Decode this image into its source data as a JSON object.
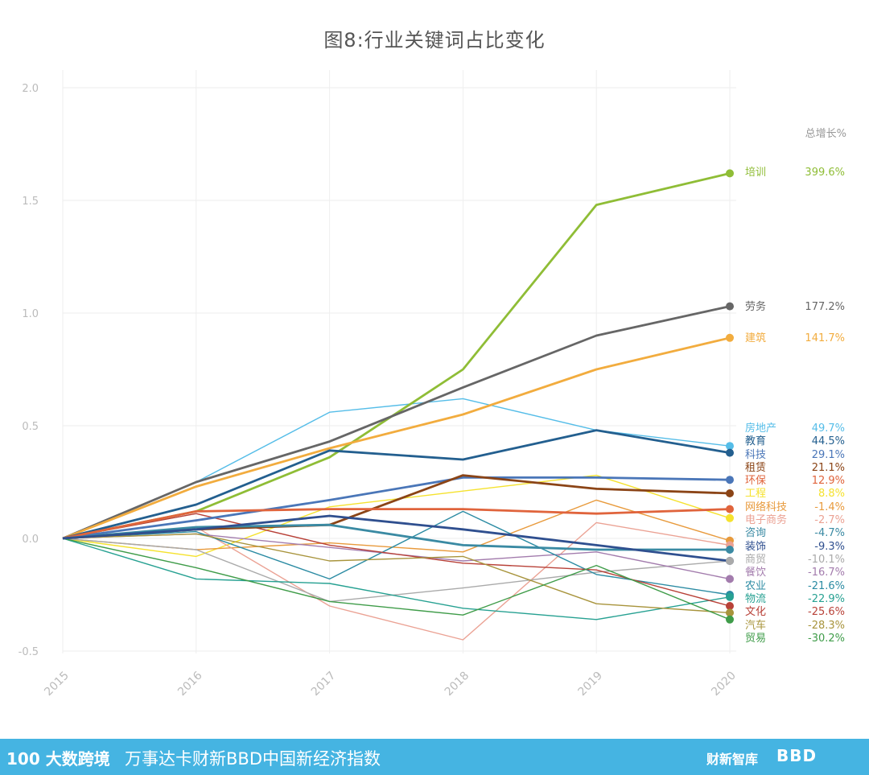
{
  "chart_data": {
    "type": "line",
    "title": "图8:行业关键词占比变化",
    "x": [
      "2015",
      "2016",
      "2017",
      "2018",
      "2019",
      "2020"
    ],
    "ylim": [
      -0.5,
      2.0
    ],
    "yticks": [
      "2.0",
      "1.5",
      "1.0",
      "0.5",
      "0.0",
      "-0.5"
    ],
    "ytick_values": [
      2.0,
      1.5,
      1.0,
      0.5,
      0.0,
      -0.5
    ],
    "grid": true,
    "legend_header": "总增长%",
    "series": [
      {
        "name": "培训",
        "growth": "399.6%",
        "color": "#8fbd36",
        "highlight": true,
        "values": [
          0,
          0.12,
          0.36,
          0.75,
          1.48,
          1.62
        ]
      },
      {
        "name": "劳务",
        "growth": "177.2%",
        "color": "#666666",
        "highlight": true,
        "values": [
          0,
          0.25,
          0.43,
          0.67,
          0.9,
          1.03
        ]
      },
      {
        "name": "建筑",
        "growth": "141.7%",
        "color": "#f2ac3e",
        "highlight": true,
        "values": [
          0,
          0.23,
          0.4,
          0.55,
          0.75,
          0.89
        ]
      },
      {
        "name": "房地产",
        "growth": "49.7%",
        "color": "#55bde8",
        "highlight": false,
        "values": [
          0,
          0.25,
          0.56,
          0.62,
          0.48,
          0.41
        ]
      },
      {
        "name": "教育",
        "growth": "44.5%",
        "color": "#235f8f",
        "highlight": true,
        "values": [
          0,
          0.15,
          0.39,
          0.35,
          0.48,
          0.38
        ]
      },
      {
        "name": "科技",
        "growth": "29.1%",
        "color": "#4a76b8",
        "highlight": true,
        "values": [
          0,
          0.08,
          0.17,
          0.27,
          0.27,
          0.26
        ]
      },
      {
        "name": "租赁",
        "growth": "21.1%",
        "color": "#8b4416",
        "highlight": true,
        "values": [
          0,
          0.04,
          0.06,
          0.28,
          0.22,
          0.2
        ]
      },
      {
        "name": "环保",
        "growth": "12.9%",
        "color": "#e0643c",
        "highlight": true,
        "values": [
          0,
          0.12,
          0.13,
          0.13,
          0.11,
          0.13
        ]
      },
      {
        "name": "工程",
        "growth": "8.8%",
        "color": "#f5e22e",
        "highlight": false,
        "values": [
          0,
          -0.08,
          0.14,
          0.21,
          0.28,
          0.09
        ]
      },
      {
        "name": "网络科技",
        "growth": "-1.4%",
        "color": "#e89a3c",
        "highlight": false,
        "values": [
          0,
          -0.05,
          -0.02,
          -0.06,
          0.17,
          -0.01
        ]
      },
      {
        "name": "电子商务",
        "growth": "-2.7%",
        "color": "#eba294",
        "highlight": false,
        "values": [
          0,
          0.05,
          -0.3,
          -0.45,
          0.07,
          -0.03
        ]
      },
      {
        "name": "咨询",
        "growth": "-4.7%",
        "color": "#3a8aa3",
        "highlight": true,
        "values": [
          0,
          0.05,
          0.06,
          -0.03,
          -0.05,
          -0.05
        ]
      },
      {
        "name": "装饰",
        "growth": "-9.3%",
        "color": "#2f4f8f",
        "highlight": true,
        "values": [
          0,
          0.04,
          0.1,
          0.04,
          -0.03,
          -0.1
        ]
      },
      {
        "name": "商贸",
        "growth": "-10.1%",
        "color": "#aaaaaa",
        "highlight": false,
        "values": [
          0,
          -0.05,
          -0.28,
          -0.22,
          -0.15,
          -0.1
        ]
      },
      {
        "name": "餐饮",
        "growth": "-16.7%",
        "color": "#a37cad",
        "highlight": false,
        "values": [
          0,
          0.02,
          -0.04,
          -0.1,
          -0.06,
          -0.18
        ]
      },
      {
        "name": "农业",
        "growth": "-21.6%",
        "color": "#2b8ba3",
        "highlight": false,
        "values": [
          0,
          0.03,
          -0.18,
          0.12,
          -0.16,
          -0.25
        ]
      },
      {
        "name": "物流",
        "growth": "-22.9%",
        "color": "#27a192",
        "highlight": false,
        "values": [
          0,
          -0.18,
          -0.2,
          -0.31,
          -0.36,
          -0.26
        ]
      },
      {
        "name": "文化",
        "growth": "-25.6%",
        "color": "#b84138",
        "highlight": false,
        "values": [
          0,
          0.11,
          -0.03,
          -0.11,
          -0.14,
          -0.3
        ]
      },
      {
        "name": "汽车",
        "growth": "-28.3%",
        "color": "#a8943c",
        "highlight": false,
        "values": [
          0,
          0.02,
          -0.1,
          -0.08,
          -0.29,
          -0.33
        ]
      },
      {
        "name": "贸易",
        "growth": "-30.2%",
        "color": "#3f9c49",
        "highlight": false,
        "values": [
          0,
          -0.13,
          -0.28,
          -0.34,
          -0.12,
          -0.36
        ]
      }
    ]
  },
  "footer": {
    "logo": "100 大数跨境",
    "slogan": "万事达卡财新BBD中国新经济指数",
    "brand1": "财新智库",
    "brand2": "BBD"
  },
  "colors": {
    "footer_bg": "#45b4e2",
    "grid": "#eeeeee",
    "tick": "#bbbbbb"
  }
}
